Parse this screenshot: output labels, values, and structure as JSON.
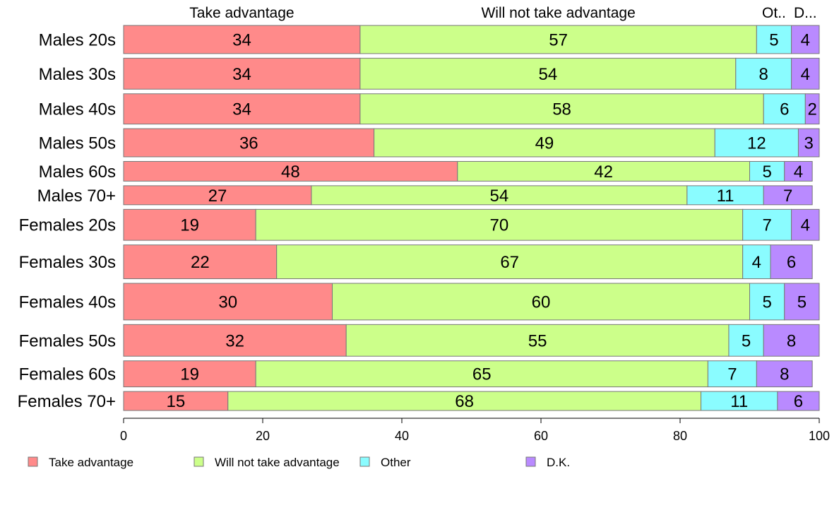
{
  "chart_data": {
    "type": "bar",
    "orientation": "horizontal",
    "stacked": true,
    "title": "",
    "xlabel": "",
    "ylabel": "",
    "xlim": [
      0,
      100
    ],
    "xticks": [
      0,
      20,
      40,
      60,
      80,
      100
    ],
    "grid": false,
    "legend_position": "bottom",
    "categories": [
      "Males 20s",
      "Males 30s",
      "Males 40s",
      "Males 50s",
      "Males 60s",
      "Males 70+",
      "Females 20s",
      "Females 30s",
      "Females 40s",
      "Females 50s",
      "Females 60s",
      "Females 70+"
    ],
    "category_weights": [
      40,
      44,
      43,
      40,
      28,
      27,
      44,
      48,
      52,
      45,
      37,
      27
    ],
    "column_headers": [
      "Take advantage",
      "Will not take advantage",
      "Ot..",
      "D..."
    ],
    "series": [
      {
        "name": "Take advantage",
        "color": "#ff8a8a",
        "values": [
          34,
          34,
          34,
          36,
          48,
          27,
          19,
          22,
          30,
          32,
          19,
          15
        ]
      },
      {
        "name": "Will not take advantage",
        "color": "#ccff8a",
        "values": [
          57,
          54,
          58,
          49,
          42,
          54,
          70,
          67,
          60,
          55,
          65,
          68
        ]
      },
      {
        "name": "Other",
        "color": "#8afcff",
        "values": [
          5,
          8,
          6,
          12,
          5,
          11,
          7,
          4,
          5,
          5,
          7,
          11
        ]
      },
      {
        "name": "D.K.",
        "color": "#b98aff",
        "values": [
          4,
          4,
          2,
          3,
          4,
          7,
          4,
          6,
          5,
          8,
          8,
          6
        ]
      }
    ]
  }
}
